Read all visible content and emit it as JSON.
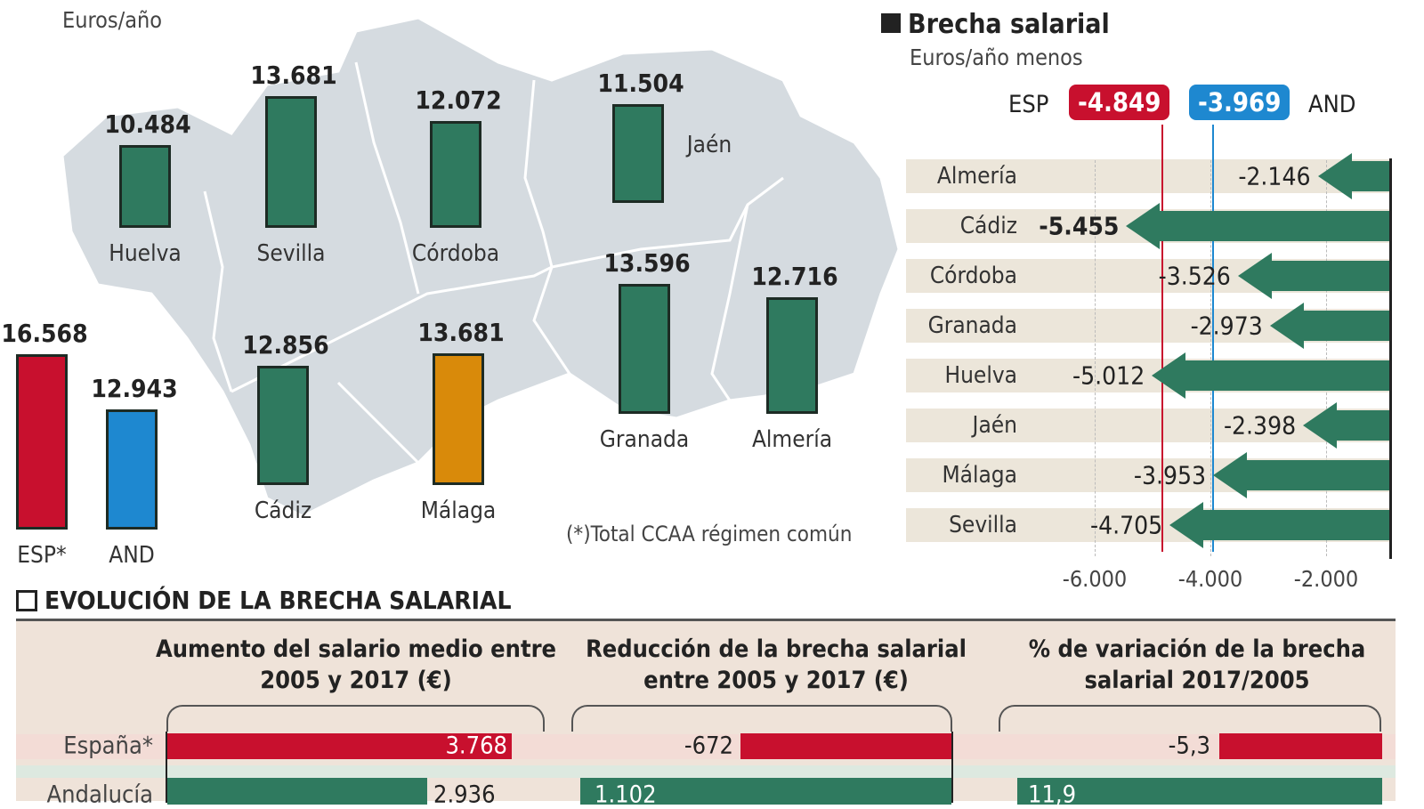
{
  "unit_left": "Euros/año",
  "footnote": "(*)Total CCAA régimen común",
  "colors": {
    "green": "#2f7a5f",
    "esp": "#c8102e",
    "and": "#1e88d0",
    "malaga": "#d98a0a",
    "map": "#d5dbe0",
    "band": "#ece6da",
    "bottom_bg": "#efe3d9"
  },
  "chart_data": [
    {
      "type": "bar",
      "title": "",
      "ylabel": "Euros/año",
      "categories": [
        "Huelva",
        "Sevilla",
        "Córdoba",
        "Jaén",
        "Cádiz",
        "Málaga",
        "Granada",
        "Almería",
        "ESP*",
        "AND"
      ],
      "values": [
        10484,
        13681,
        12072,
        11504,
        12856,
        13681,
        13596,
        12716,
        16568,
        12943
      ],
      "labels": [
        "10.484",
        "13.681",
        "12.072",
        "11.504",
        "12.856",
        "13.681",
        "13.596",
        "12.716",
        "16.568",
        "12.943"
      ]
    },
    {
      "type": "bar",
      "orientation": "horizontal",
      "title": "Brecha salarial",
      "subtitle": "Euros/año menos",
      "categories": [
        "Almería",
        "Cádiz",
        "Córdoba",
        "Granada",
        "Huelva",
        "Jaén",
        "Málaga",
        "Sevilla"
      ],
      "values": [
        -2146,
        -5455,
        -3526,
        -2973,
        -5012,
        -2398,
        -3953,
        -4705
      ],
      "labels": [
        "-2.146",
        "-5.455",
        "-3.526",
        "-2.973",
        "-5.012",
        "-2.398",
        "-3.953",
        "-4.705"
      ],
      "reference_lines": [
        {
          "name": "ESP",
          "value": -4849,
          "label": "-4.849"
        },
        {
          "name": "AND",
          "value": -3969,
          "label": "-3.969"
        }
      ],
      "xticks": [
        -6000,
        -4000,
        -2000
      ],
      "xtick_labels": [
        "-6.000",
        "-4.000",
        "-2.000"
      ],
      "grid": true
    },
    {
      "type": "bar",
      "orientation": "horizontal",
      "title": "EVOLUCIÓN DE LA BRECHA SALARIAL",
      "panels": [
        {
          "title": "Aumento del salario medio entre 2005 y 2017 (€)",
          "rows": [
            {
              "name": "España*",
              "value": 3768,
              "label": "3.768"
            },
            {
              "name": "Andalucía",
              "label": "2.936"
            }
          ]
        },
        {
          "title": "Reducción de la brecha salarial entre 2005 y 2017 (€)",
          "rows": [
            {
              "name": "España*",
              "value": -672,
              "label": "-672"
            },
            {
              "name": "Andalucía",
              "label": "1.102"
            }
          ]
        },
        {
          "title": "% de variación de la brecha salarial 2017/2005",
          "rows": [
            {
              "name": "España*",
              "value": -5.3,
              "label": "-5,3"
            },
            {
              "name": "Andalucía",
              "label": "11,9"
            }
          ]
        }
      ]
    }
  ]
}
